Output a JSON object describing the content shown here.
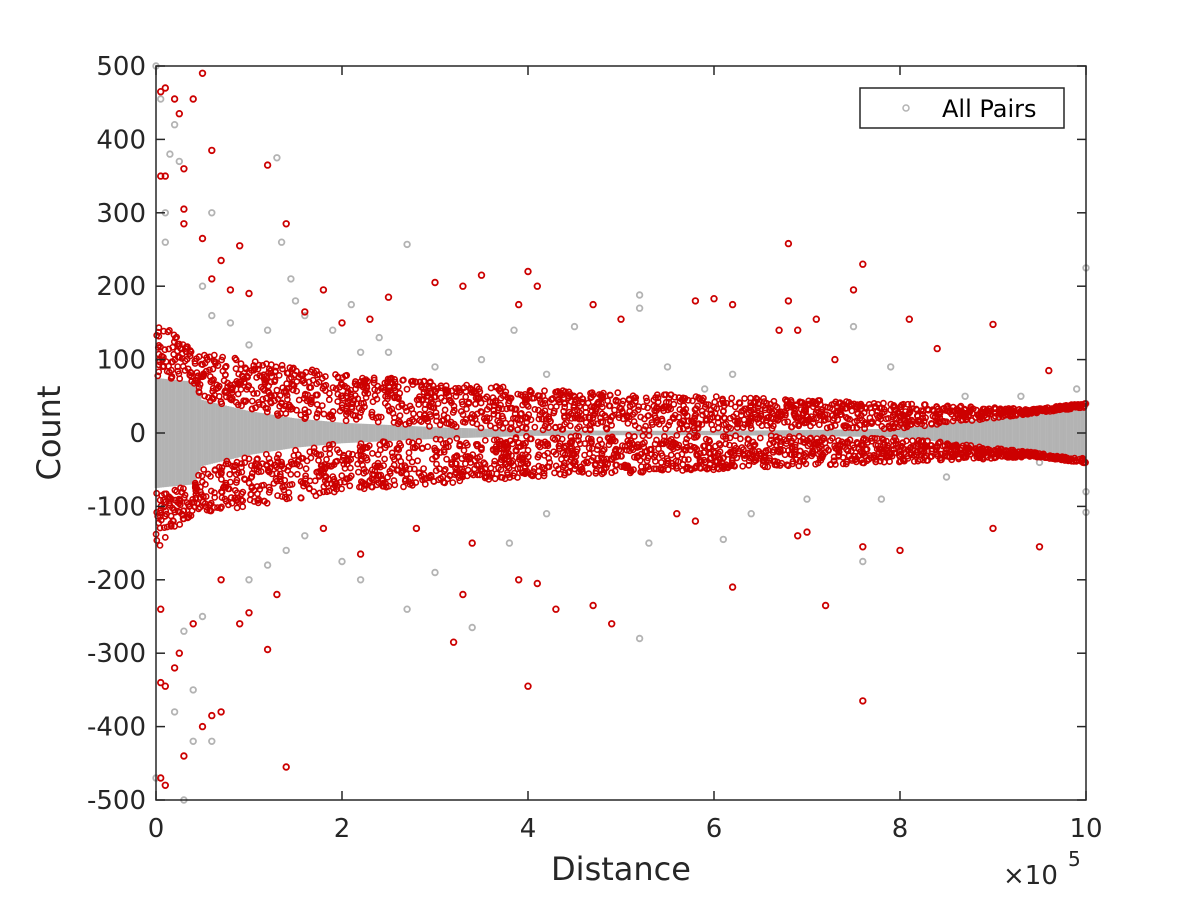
{
  "chart_data": {
    "type": "scatter",
    "title": "",
    "xlabel": "Distance",
    "ylabel": "Count",
    "x_multiplier_label": "×10",
    "x_multiplier_exponent": "5",
    "xlim": [
      0,
      10
    ],
    "ylim": [
      -500,
      500
    ],
    "x_ticks": [
      0,
      2,
      4,
      6,
      8,
      10
    ],
    "y_ticks": [
      -500,
      -400,
      -300,
      -200,
      -100,
      0,
      100,
      200,
      300,
      400,
      500
    ],
    "x_tick_labels": [
      "0",
      "2",
      "4",
      "6",
      "8",
      "10"
    ],
    "y_tick_labels": [
      "-500",
      "-400",
      "-300",
      "-200",
      "-100",
      "0",
      "100",
      "200",
      "300",
      "400",
      "500"
    ],
    "grid": false,
    "legend": {
      "position": "top-right",
      "entries": [
        "All Pairs"
      ]
    },
    "colors": {
      "all_pairs": "#b3b3b3",
      "highlighted": "#cc0000",
      "axes": "#262626"
    },
    "series": [
      {
        "name": "All Pairs",
        "color": "#b3b3b3",
        "marker": "circle-open",
        "points": [
          [
            0.0,
            500
          ],
          [
            0.0,
            -470
          ],
          [
            0.05,
            455
          ],
          [
            0.2,
            420
          ],
          [
            0.3,
            -500
          ],
          [
            0.4,
            -420
          ],
          [
            0.15,
            380
          ],
          [
            0.25,
            370
          ],
          [
            0.1,
            300
          ],
          [
            0.6,
            300
          ],
          [
            0.5,
            200
          ],
          [
            0.6,
            160
          ],
          [
            0.8,
            150
          ],
          [
            1.0,
            120
          ],
          [
            1.2,
            140
          ],
          [
            1.3,
            375
          ],
          [
            1.35,
            260
          ],
          [
            1.45,
            210
          ],
          [
            1.5,
            180
          ],
          [
            1.6,
            160
          ],
          [
            1.9,
            140
          ],
          [
            2.1,
            175
          ],
          [
            2.2,
            110
          ],
          [
            2.4,
            130
          ],
          [
            2.7,
            257
          ],
          [
            2.5,
            110
          ],
          [
            3.0,
            90
          ],
          [
            3.5,
            100
          ],
          [
            3.85,
            140
          ],
          [
            4.2,
            80
          ],
          [
            4.5,
            145
          ],
          [
            5.2,
            188
          ],
          [
            5.2,
            170
          ],
          [
            5.5,
            90
          ],
          [
            5.9,
            60
          ],
          [
            6.2,
            80
          ],
          [
            7.5,
            145
          ],
          [
            7.9,
            90
          ],
          [
            8.7,
            50
          ],
          [
            9.3,
            50
          ],
          [
            9.9,
            60
          ],
          [
            10.0,
            225
          ],
          [
            0.4,
            -350
          ],
          [
            0.5,
            -250
          ],
          [
            0.6,
            -420
          ],
          [
            1.0,
            -200
          ],
          [
            1.2,
            -180
          ],
          [
            1.4,
            -160
          ],
          [
            1.6,
            -140
          ],
          [
            2.0,
            -175
          ],
          [
            2.2,
            -200
          ],
          [
            2.7,
            -240
          ],
          [
            3.0,
            -190
          ],
          [
            3.4,
            -265
          ],
          [
            3.8,
            -150
          ],
          [
            4.2,
            -110
          ],
          [
            5.2,
            -280
          ],
          [
            5.3,
            -150
          ],
          [
            6.1,
            -145
          ],
          [
            6.4,
            -110
          ],
          [
            7.0,
            -90
          ],
          [
            7.6,
            -175
          ],
          [
            7.8,
            -90
          ],
          [
            8.5,
            -60
          ],
          [
            9.5,
            -40
          ],
          [
            10.0,
            -80
          ],
          [
            10.0,
            -108
          ],
          [
            10.0,
            40
          ],
          [
            9.7,
            30
          ],
          [
            0.2,
            -380
          ],
          [
            0.3,
            -270
          ],
          [
            0.1,
            260
          ]
        ]
      },
      {
        "name": "",
        "color": "#cc0000",
        "marker": "circle-open",
        "points": [
          [
            0.05,
            465
          ],
          [
            0.1,
            470
          ],
          [
            0.2,
            455
          ],
          [
            0.25,
            435
          ],
          [
            0.4,
            455
          ],
          [
            0.5,
            490
          ],
          [
            0.05,
            350
          ],
          [
            0.1,
            350
          ],
          [
            0.3,
            360
          ],
          [
            0.6,
            385
          ],
          [
            0.3,
            305
          ],
          [
            0.3,
            285
          ],
          [
            0.5,
            265
          ],
          [
            0.7,
            235
          ],
          [
            0.9,
            255
          ],
          [
            0.6,
            210
          ],
          [
            0.8,
            195
          ],
          [
            1.0,
            190
          ],
          [
            1.2,
            365
          ],
          [
            1.4,
            285
          ],
          [
            1.8,
            195
          ],
          [
            1.6,
            165
          ],
          [
            2.0,
            150
          ],
          [
            2.3,
            155
          ],
          [
            2.5,
            185
          ],
          [
            3.3,
            200
          ],
          [
            3.5,
            215
          ],
          [
            3.0,
            205
          ],
          [
            4.0,
            220
          ],
          [
            4.1,
            200
          ],
          [
            3.9,
            175
          ],
          [
            4.7,
            175
          ],
          [
            5.0,
            155
          ],
          [
            5.8,
            180
          ],
          [
            6.0,
            183
          ],
          [
            6.2,
            175
          ],
          [
            6.8,
            258
          ],
          [
            6.8,
            180
          ],
          [
            7.6,
            230
          ],
          [
            7.5,
            195
          ],
          [
            7.1,
            155
          ],
          [
            8.1,
            155
          ],
          [
            9.0,
            148
          ],
          [
            8.4,
            115
          ],
          [
            9.6,
            85
          ],
          [
            6.7,
            140
          ],
          [
            6.9,
            140
          ],
          [
            7.3,
            100
          ],
          [
            0.05,
            -470
          ],
          [
            0.1,
            -480
          ],
          [
            0.3,
            -440
          ],
          [
            0.5,
            -400
          ],
          [
            0.6,
            -385
          ],
          [
            0.7,
            -380
          ],
          [
            0.05,
            -340
          ],
          [
            0.1,
            -345
          ],
          [
            0.2,
            -320
          ],
          [
            0.25,
            -300
          ],
          [
            0.05,
            -240
          ],
          [
            0.4,
            -260
          ],
          [
            0.7,
            -200
          ],
          [
            0.9,
            -260
          ],
          [
            1.0,
            -245
          ],
          [
            1.2,
            -295
          ],
          [
            1.3,
            -220
          ],
          [
            1.4,
            -455
          ],
          [
            1.8,
            -130
          ],
          [
            2.2,
            -165
          ],
          [
            2.8,
            -130
          ],
          [
            3.2,
            -285
          ],
          [
            3.3,
            -220
          ],
          [
            3.4,
            -150
          ],
          [
            4.0,
            -345
          ],
          [
            3.9,
            -200
          ],
          [
            4.1,
            -205
          ],
          [
            4.3,
            -240
          ],
          [
            4.7,
            -235
          ],
          [
            4.9,
            -260
          ],
          [
            5.6,
            -110
          ],
          [
            6.2,
            -210
          ],
          [
            7.2,
            -235
          ],
          [
            7.6,
            -365
          ],
          [
            7.6,
            -155
          ],
          [
            8.0,
            -160
          ],
          [
            9.0,
            -130
          ],
          [
            9.5,
            -155
          ],
          [
            6.9,
            -140
          ],
          [
            7.0,
            -135
          ],
          [
            5.8,
            -120
          ]
        ]
      }
    ],
    "bands": {
      "gray_band_halfwidth": [
        [
          0.0,
          75
        ],
        [
          0.4,
          70
        ],
        [
          0.5,
          45
        ],
        [
          1.0,
          30
        ],
        [
          1.5,
          20
        ],
        [
          2.0,
          14
        ],
        [
          3.0,
          8
        ],
        [
          4.0,
          4
        ],
        [
          5.0,
          3
        ],
        [
          6.0,
          3
        ],
        [
          7.0,
          4
        ],
        [
          8.0,
          6
        ],
        [
          9.0,
          20
        ],
        [
          10.0,
          35
        ]
      ],
      "red_band_halfwidth": [
        [
          0.0,
          160
        ],
        [
          0.4,
          110
        ],
        [
          1.0,
          100
        ],
        [
          1.5,
          90
        ],
        [
          2.0,
          80
        ],
        [
          3.0,
          70
        ],
        [
          4.0,
          60
        ],
        [
          5.0,
          55
        ],
        [
          6.0,
          50
        ],
        [
          7.0,
          45
        ],
        [
          8.0,
          40
        ],
        [
          9.0,
          35
        ],
        [
          10.0,
          28
        ]
      ]
    }
  }
}
